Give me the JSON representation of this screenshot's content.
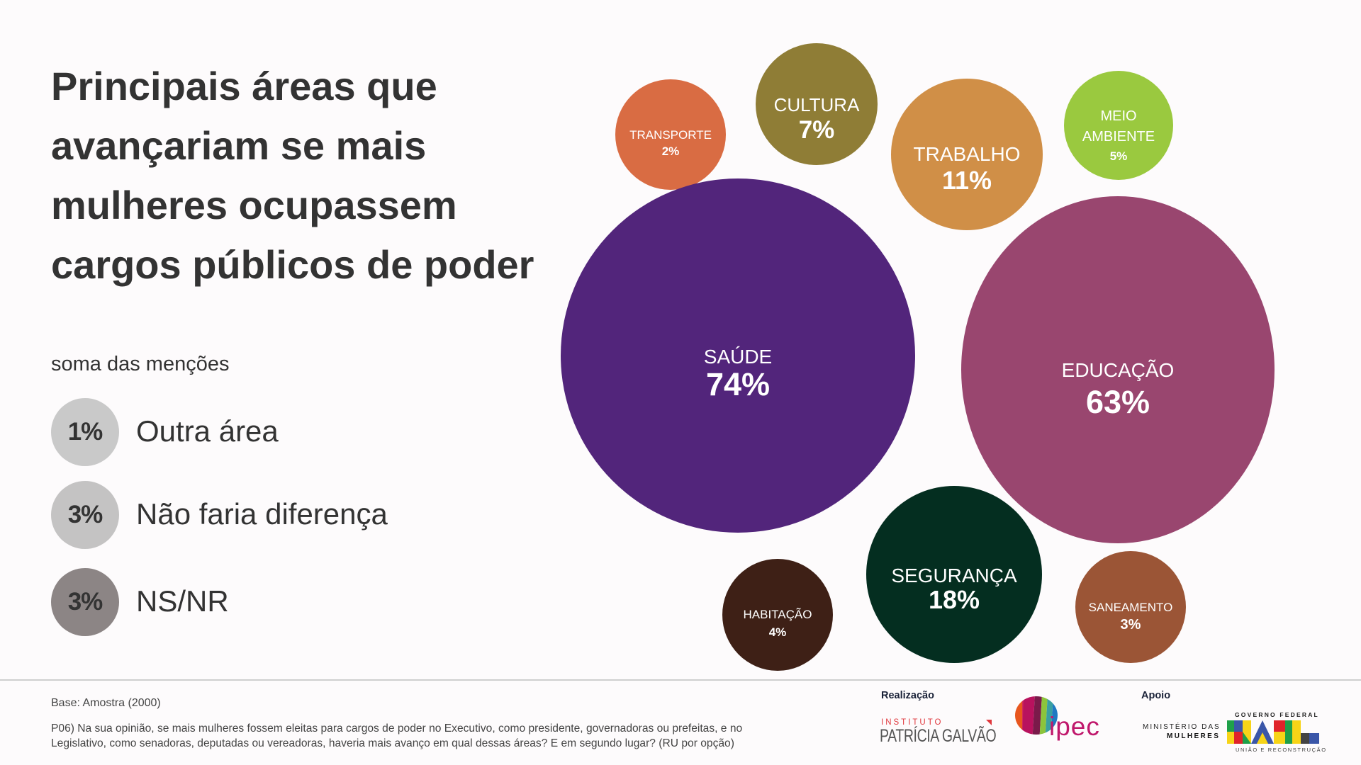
{
  "title": {
    "lines": [
      "Principais áreas que",
      "avançariam se mais",
      "mulheres ocupassem",
      "cargos públicos de poder"
    ]
  },
  "subtitle": "soma das menções",
  "legend": [
    {
      "value": "1%",
      "label": "Outra área",
      "color": "#c9c9c9"
    },
    {
      "value": "3%",
      "label": "Não faria diferença",
      "color": "#c4c3c3"
    },
    {
      "value": "3%",
      "label": "NS/NR",
      "color": "#8c8585"
    }
  ],
  "chart_data": {
    "type": "bubble",
    "title": "Principais áreas que avançariam se mais mulheres ocupassem cargos públicos de poder",
    "subtitle": "soma das menções",
    "unit": "%",
    "categories": [
      "TRANSPORTE",
      "CULTURA",
      "TRABALHO",
      "MEIO AMBIENTE",
      "SAÚDE",
      "EDUCAÇÃO",
      "HABITAÇÃO",
      "SEGURANÇA",
      "SANEAMENTO"
    ],
    "values": [
      2,
      7,
      11,
      5,
      74,
      63,
      4,
      18,
      3
    ],
    "bubbles": [
      {
        "label_lines": [
          "TRANSPORTE"
        ],
        "value": 2,
        "value_label": "2%",
        "color": "#d96c43"
      },
      {
        "label_lines": [
          "CULTURA"
        ],
        "value": 7,
        "value_label": "7%",
        "color": "#8f7d36"
      },
      {
        "label_lines": [
          "TRABALHO"
        ],
        "value": 11,
        "value_label": "11%",
        "color": "#d08f47"
      },
      {
        "label_lines": [
          "MEIO",
          "AMBIENTE"
        ],
        "value": 5,
        "value_label": "5%",
        "color": "#9ac93f"
      },
      {
        "label_lines": [
          "SAÚDE"
        ],
        "value": 74,
        "value_label": "74%",
        "color": "#52257b"
      },
      {
        "label_lines": [
          "EDUCAÇÃO"
        ],
        "value": 63,
        "value_label": "63%",
        "color": "#99466f"
      },
      {
        "label_lines": [
          "HABITAÇÃO"
        ],
        "value": 4,
        "value_label": "4%",
        "color": "#3e2016"
      },
      {
        "label_lines": [
          "SEGURANÇA"
        ],
        "value": 18,
        "value_label": "18%",
        "color": "#042e20"
      },
      {
        "label_lines": [
          "SANEAMENTO"
        ],
        "value": 3,
        "value_label": "3%",
        "color": "#9b5536"
      }
    ]
  },
  "footer": {
    "base_note": "Base: Amostra (2000)",
    "question_lines": [
      "P06) Na sua opinião, se mais mulheres fossem eleitas para cargos de poder no Executivo, como presidente, governadoras ou prefeitas, e no",
      "Legislativo, como senadoras, deputadas ou vereadoras, haveria mais avanço em qual dessas áreas? E em segundo lugar? (RU por opção)"
    ],
    "realizacao_label": "Realização",
    "apoio_label": "Apoio",
    "ipg_logo": {
      "line1": "INSTITUTO",
      "line2": "PATRÍCIA GALVÃO"
    },
    "ipec_logo": {
      "text": "ipec"
    },
    "ministerio_logo": {
      "line1": "MINISTÉRIO DAS",
      "line2": "MULHERES"
    },
    "governo_logo": {
      "top": "GOVERNO FEDERAL",
      "word": "BRASIL",
      "bottom": "UNIÃO E RECONSTRUÇÃO"
    },
    "divider_color": "#cfcfcf",
    "heading_color": "#1a2238"
  }
}
